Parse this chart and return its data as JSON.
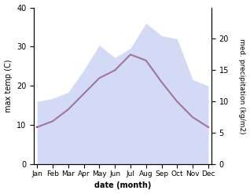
{
  "months": [
    "Jan",
    "Feb",
    "Mar",
    "Apr",
    "May",
    "Jun",
    "Jul",
    "Aug",
    "Sep",
    "Oct",
    "Nov",
    "Dec"
  ],
  "temp": [
    9.5,
    11.0,
    14.0,
    18.0,
    22.0,
    24.0,
    28.0,
    26.5,
    21.0,
    16.0,
    12.0,
    9.5
  ],
  "precip": [
    10.0,
    10.5,
    11.5,
    15.0,
    19.0,
    17.0,
    18.5,
    22.5,
    20.5,
    20.0,
    13.5,
    12.5
  ],
  "temp_color": "#8b2040",
  "precip_color": "#b0bcee",
  "precip_fill_alpha": 0.55,
  "temp_ylim": [
    0,
    40
  ],
  "precip_ylim": [
    0,
    25
  ],
  "precip_yticks": [
    0,
    5,
    10,
    15,
    20
  ],
  "temp_yticks": [
    0,
    10,
    20,
    30,
    40
  ],
  "xlabel": "date (month)",
  "ylabel_left": "max temp (C)",
  "ylabel_right": "med. precipitation (kg/m2)",
  "bg_color": "#ffffff",
  "line_width": 1.5
}
